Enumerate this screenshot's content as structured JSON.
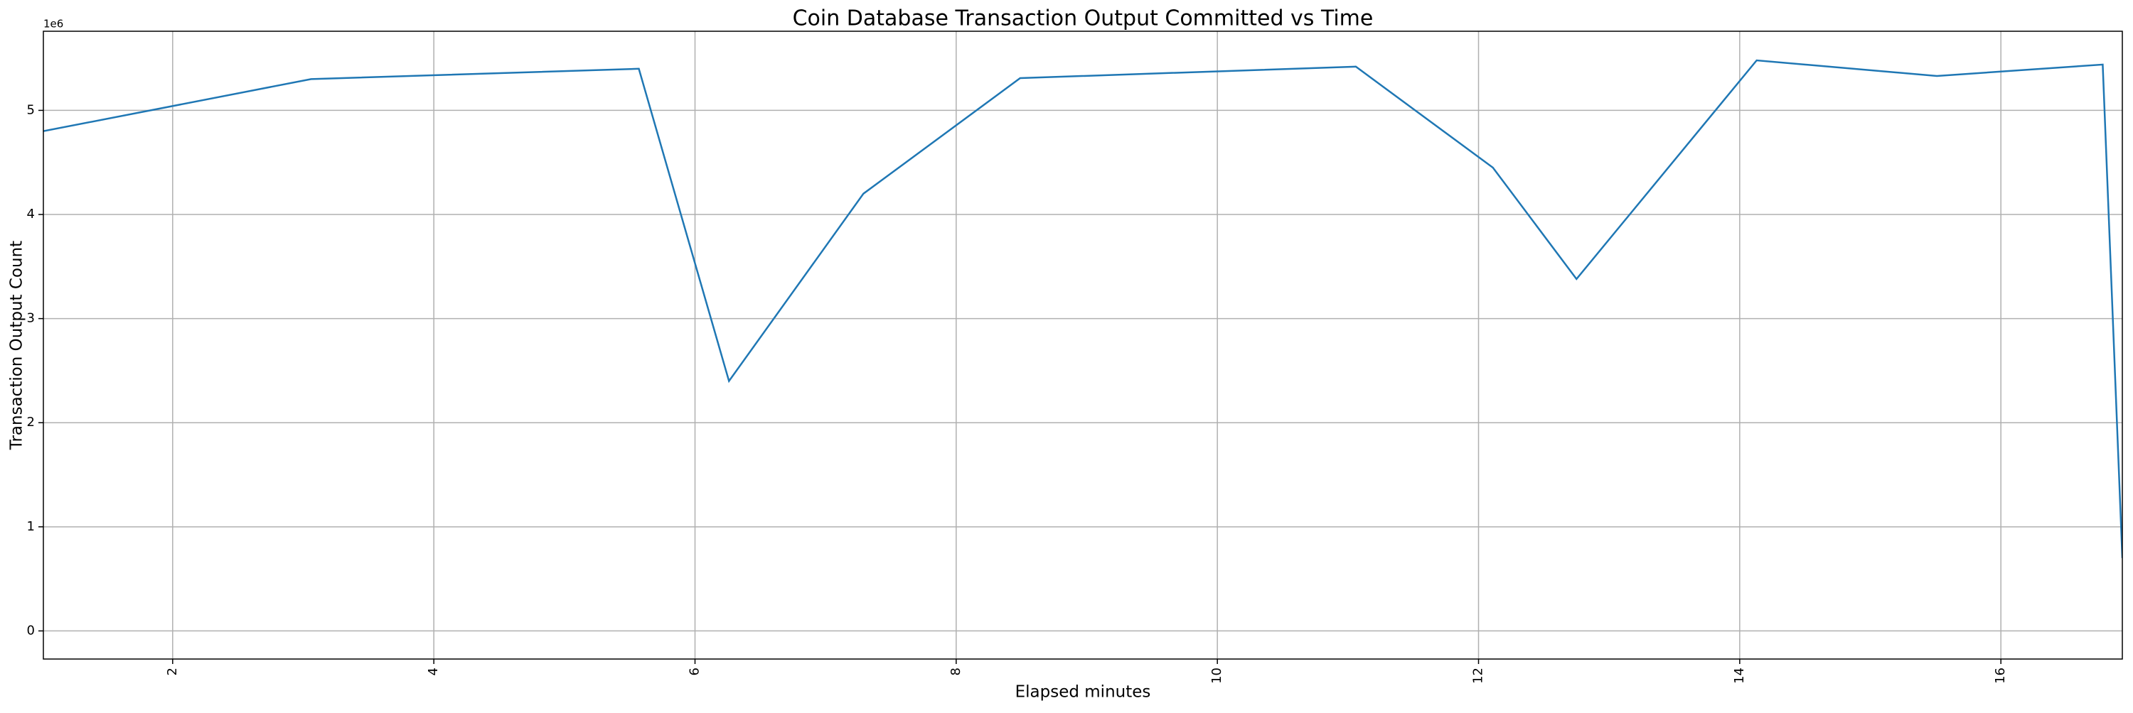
{
  "chart_data": {
    "type": "line",
    "title": "Coin Database Transaction Output Committed vs Time",
    "x_label": "Elapsed minutes",
    "y_label": "Transaction Output Count",
    "y_offset_label": "1e6",
    "x": [
      1.01,
      3.06,
      5.57,
      6.26,
      7.29,
      8.49,
      11.06,
      12.11,
      12.75,
      14.13,
      15.51,
      16.78,
      16.93
    ],
    "values": [
      4.8,
      5.3,
      5.4,
      2.4,
      4.2,
      5.31,
      5.42,
      4.45,
      3.38,
      5.48,
      5.33,
      5.44,
      0.7
    ],
    "color": "#1f77b4",
    "xlim": [
      1.01,
      16.93
    ],
    "xticks": [
      2,
      4,
      6,
      8,
      10,
      12,
      14,
      16
    ],
    "ylim": [
      -0.27,
      5.76
    ],
    "yticks": [
      0,
      1,
      2,
      3,
      4,
      5
    ],
    "grid": true
  }
}
